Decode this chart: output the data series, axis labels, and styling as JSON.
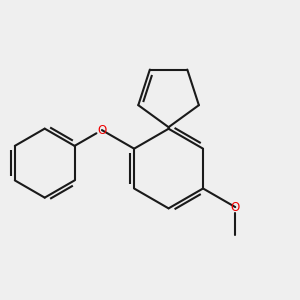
{
  "bg_color": "#efefef",
  "bond_color": "#1a1a1a",
  "oxygen_color": "#ee0000",
  "line_width": 1.5,
  "figsize": [
    3.0,
    3.0
  ],
  "dpi": 100,
  "xlim": [
    -2.8,
    2.8
  ],
  "ylim": [
    -2.8,
    2.8
  ]
}
